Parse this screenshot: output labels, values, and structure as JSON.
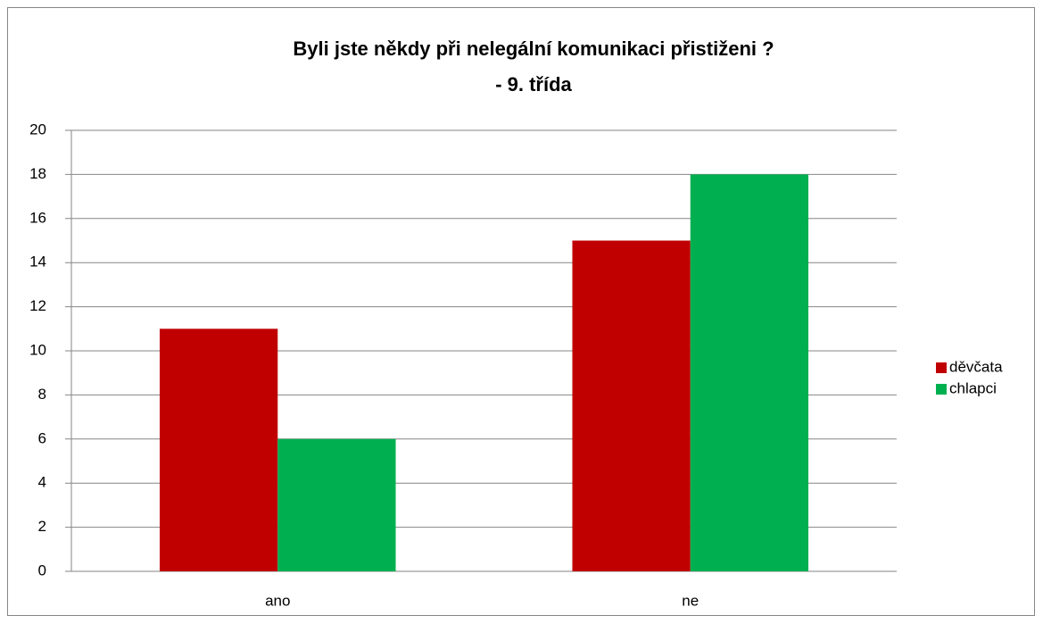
{
  "chart_data": {
    "type": "bar",
    "title": [
      "Byli jste někdy při nelegální komunikaci přistiženi ?",
      "- 9. třída"
    ],
    "categories": [
      "ano",
      "ne"
    ],
    "series": [
      {
        "name": "děvčata",
        "color": "#c00000",
        "values": [
          11,
          15
        ]
      },
      {
        "name": "chlapci",
        "color": "#00b050",
        "values": [
          6,
          18
        ]
      }
    ],
    "ylim": [
      0,
      20
    ],
    "yticks": [
      0,
      2,
      4,
      6,
      8,
      10,
      12,
      14,
      16,
      18,
      20
    ],
    "grid": true,
    "legend": "right"
  }
}
